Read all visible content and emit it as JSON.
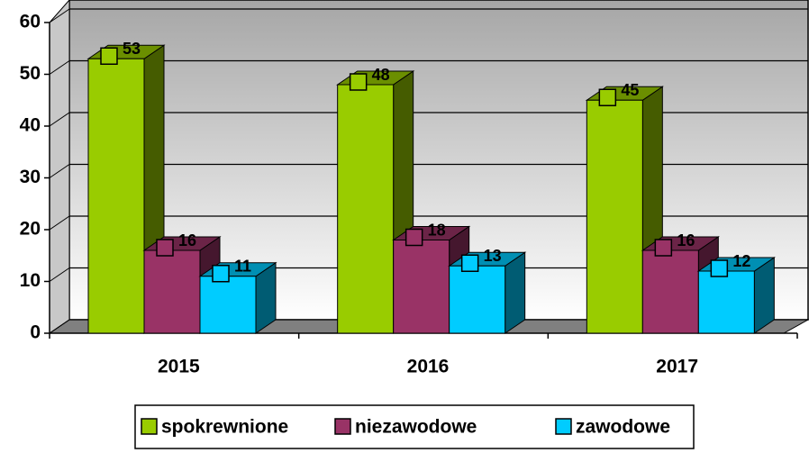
{
  "chart_data": {
    "type": "bar3d",
    "categories": [
      "2015",
      "2016",
      "2017"
    ],
    "series": [
      {
        "name": "spokrewnione",
        "color": "#99cc00",
        "values": [
          53,
          48,
          45
        ]
      },
      {
        "name": "niezawodowe",
        "color": "#993366",
        "values": [
          16,
          18,
          16
        ]
      },
      {
        "name": "zawodowe",
        "color": "#00ccff",
        "values": [
          11,
          13,
          12
        ]
      }
    ],
    "ylim": [
      0,
      60
    ],
    "yticks": [
      0,
      10,
      20,
      30,
      40,
      50,
      60
    ],
    "grid": true,
    "legend": "bottom"
  }
}
